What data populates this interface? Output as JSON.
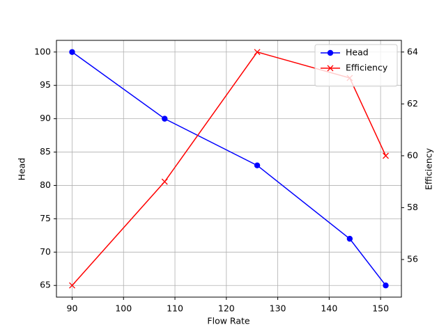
{
  "chart_data": {
    "type": "line",
    "xlabel": "Flow Rate",
    "ylabel": "Head",
    "y2label": "Efficiency",
    "x": [
      90,
      108,
      126,
      144,
      151
    ],
    "series": [
      {
        "name": "Head",
        "color": "#0000ff",
        "marker": "o",
        "axis": "y",
        "values": [
          100,
          90,
          83,
          72,
          65
        ]
      },
      {
        "name": "Efficiency",
        "color": "#ff0000",
        "marker": "x",
        "axis": "y2",
        "values": [
          55,
          59,
          64,
          63,
          60
        ]
      }
    ],
    "xlim": [
      86.95,
      154.05
    ],
    "xticks": [
      90,
      100,
      110,
      120,
      130,
      140,
      150
    ],
    "ylim": [
      63.25,
      101.75
    ],
    "yticks": [
      65,
      70,
      75,
      80,
      85,
      90,
      95,
      100
    ],
    "y2lim": [
      54.55,
      64.45
    ],
    "y2ticks": [
      56,
      58,
      60,
      62,
      64
    ],
    "grid": true,
    "legend": "upper right"
  }
}
